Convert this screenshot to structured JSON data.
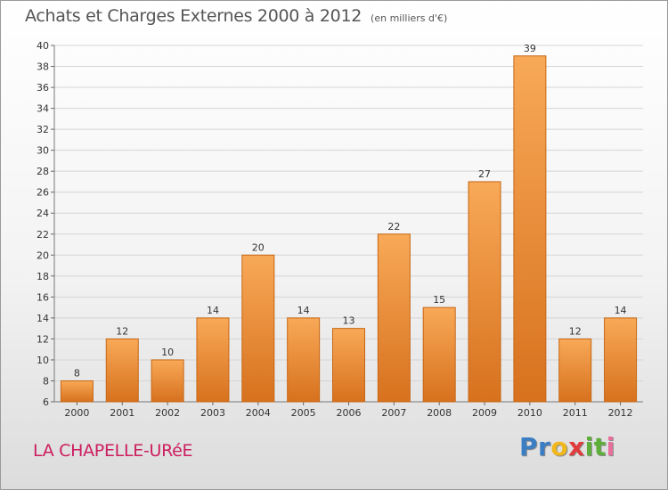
{
  "header": {
    "title": "Achats et Charges Externes 2000 à 2012",
    "unit": "(en milliers d'€)"
  },
  "footer": {
    "place": "LA CHAPELLE-URéE",
    "logo_text": "Proxiti",
    "logo_letters": [
      "P",
      "r",
      "o",
      "x",
      "i",
      "t",
      "i"
    ],
    "logo_colors": [
      "#3c7ec3",
      "#3c7ec3",
      "#f0b81c",
      "#e23b3b",
      "#5eae3a",
      "#5eae3a",
      "#e86f9c"
    ]
  },
  "colors": {
    "bar_top": "#f8a957",
    "bar_bottom": "#d7711e",
    "bar_edge": "#c66716"
  },
  "chart_data": {
    "type": "bar",
    "title": "Achats et Charges Externes 2000 à 2012",
    "subtitle": "(en milliers d'€)",
    "xlabel": "",
    "ylabel": "",
    "categories": [
      "2000",
      "2001",
      "2002",
      "2003",
      "2004",
      "2005",
      "2006",
      "2007",
      "2008",
      "2009",
      "2010",
      "2011",
      "2012"
    ],
    "values": [
      8,
      12,
      10,
      14,
      20,
      14,
      13,
      22,
      15,
      27,
      39,
      12,
      14
    ],
    "ylim": [
      6,
      40
    ],
    "yticks": [
      6,
      8,
      10,
      12,
      14,
      16,
      18,
      20,
      22,
      24,
      26,
      28,
      30,
      32,
      34,
      36,
      38,
      40
    ],
    "grid": true
  }
}
